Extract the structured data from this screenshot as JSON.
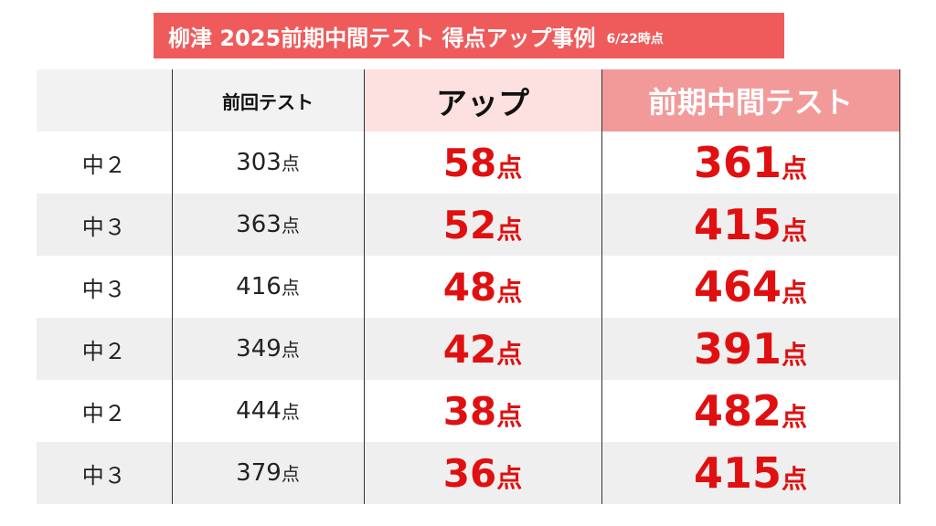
{
  "title": {
    "main": "柳津 2025前期中間テスト 得点アップ事例",
    "date": "6/22時点"
  },
  "table": {
    "headers": {
      "grade": "",
      "previous": "前回テスト",
      "up": "アップ",
      "midterm": "前期中間テスト"
    },
    "unit": "点",
    "rows": [
      {
        "grade": "中２",
        "previous": "303",
        "up": "58",
        "midterm": "361"
      },
      {
        "grade": "中３",
        "previous": "363",
        "up": "52",
        "midterm": "415"
      },
      {
        "grade": "中３",
        "previous": "416",
        "up": "48",
        "midterm": "464"
      },
      {
        "grade": "中２",
        "previous": "349",
        "up": "42",
        "midterm": "391"
      },
      {
        "grade": "中２",
        "previous": "444",
        "up": "38",
        "midterm": "482"
      },
      {
        "grade": "中３",
        "previous": "379",
        "up": "36",
        "midterm": "415"
      }
    ]
  },
  "colors": {
    "banner": "#ef5b5b",
    "header_up": "#fde0e0",
    "header_midterm": "#f29a9a",
    "highlight_text": "#e01010",
    "stripe": "#efefef"
  }
}
